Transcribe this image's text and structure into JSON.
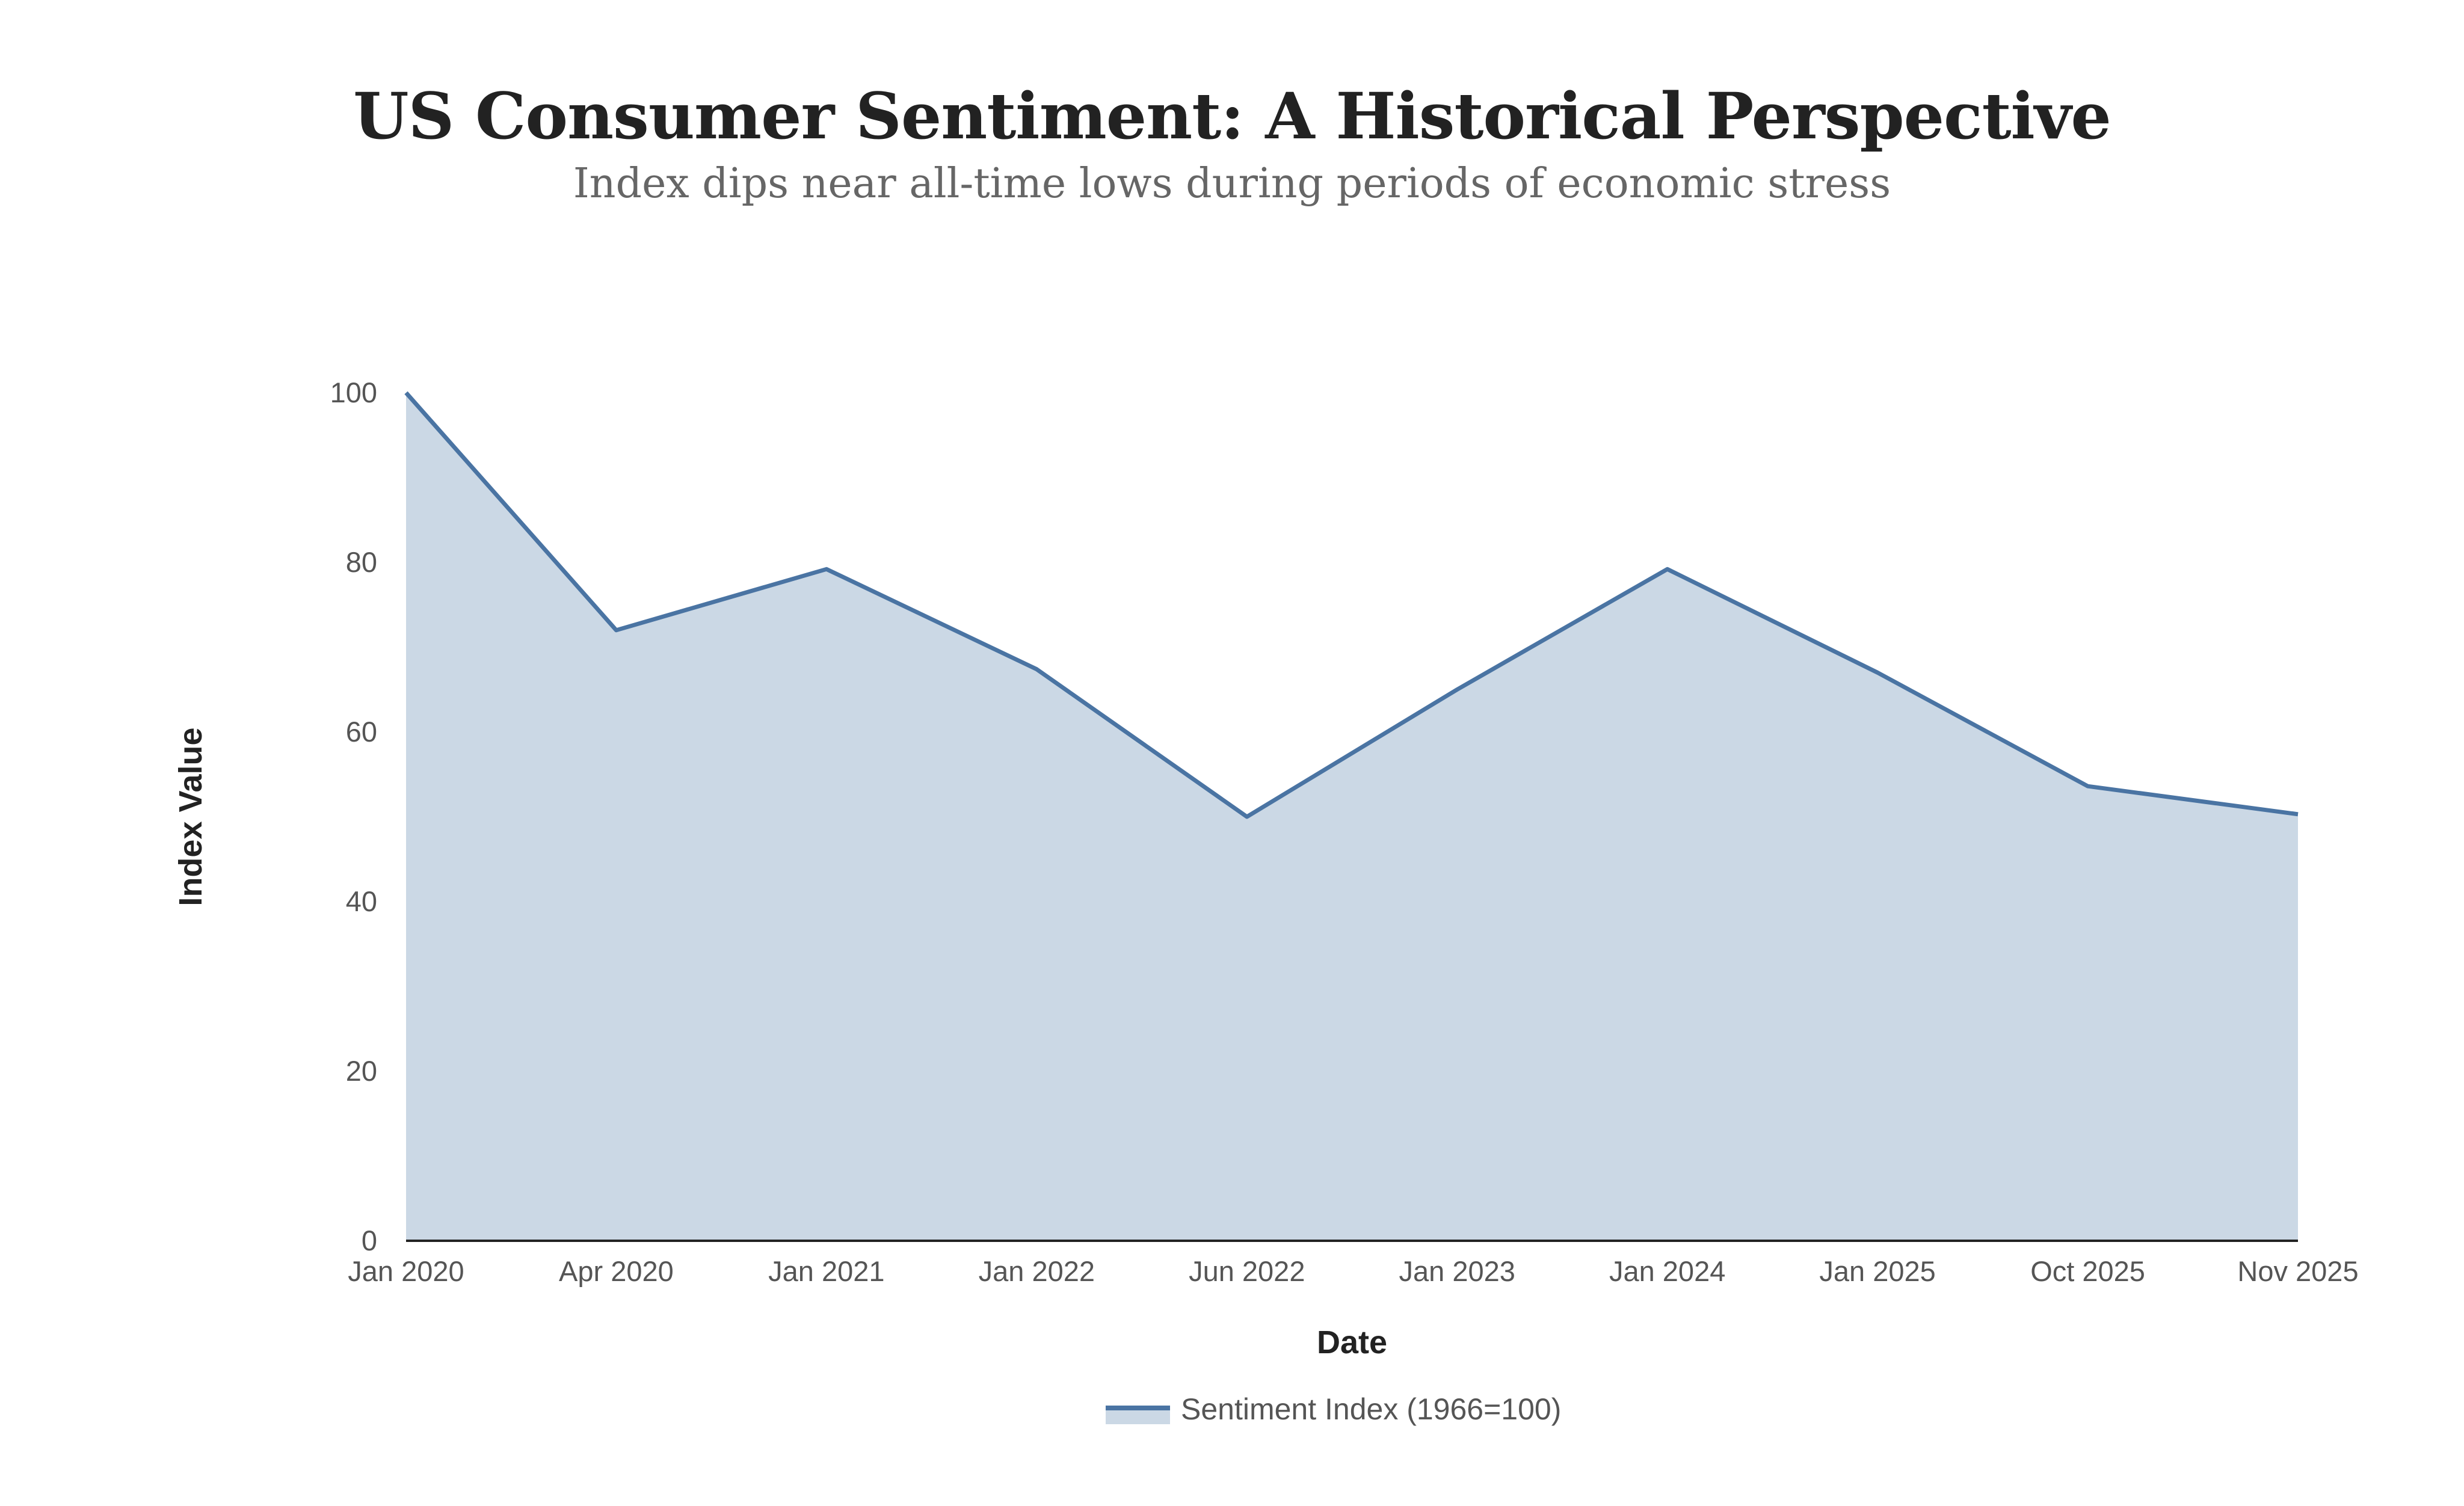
{
  "chart_data": {
    "type": "area",
    "title": "US Consumer Sentiment: A Historical Perspective",
    "subtitle": "Index dips near all-time lows during periods of economic stress",
    "xlabel": "Date",
    "ylabel": "Index Value",
    "categories": [
      "Jan 2020",
      "Apr 2020",
      "Jan 2021",
      "Jan 2022",
      "Jun 2022",
      "Jan 2023",
      "Jan 2024",
      "Jan 2025",
      "Oct 2025",
      "Nov 2025"
    ],
    "series": [
      {
        "name": "Sentiment Index (1966=100)",
        "values": [
          100,
          72,
          79.2,
          67.4,
          50,
          65,
          79.2,
          67,
          53.6,
          50.3
        ]
      }
    ],
    "ylim": [
      0,
      100
    ],
    "yticks": [
      0,
      20,
      40,
      60,
      80,
      100
    ],
    "grid": false,
    "legend": "bottom-center",
    "colors": {
      "line": "#4a74a3",
      "fill": "#cbd8e5",
      "axis": "#222222"
    }
  }
}
